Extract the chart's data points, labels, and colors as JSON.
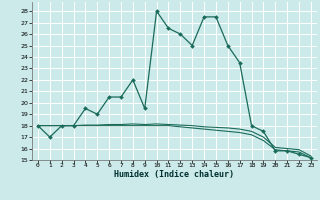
{
  "xlabel": "Humidex (Indice chaleur)",
  "bg_color": "#cceaea",
  "grid_color": "#ffffff",
  "line_color": "#1a6b5a",
  "xlim": [
    -0.5,
    23.5
  ],
  "ylim": [
    15,
    28.8
  ],
  "xticks": [
    0,
    1,
    2,
    3,
    4,
    5,
    6,
    7,
    8,
    9,
    10,
    11,
    12,
    13,
    14,
    15,
    16,
    17,
    18,
    19,
    20,
    21,
    22,
    23
  ],
  "yticks": [
    15,
    16,
    17,
    18,
    19,
    20,
    21,
    22,
    23,
    24,
    25,
    26,
    27,
    28
  ],
  "main_x": [
    0,
    1,
    2,
    3,
    4,
    5,
    6,
    7,
    8,
    9,
    10,
    11,
    12,
    13,
    14,
    15,
    16,
    17,
    18,
    19,
    20,
    21,
    22,
    23
  ],
  "main_y": [
    18,
    17,
    18,
    18,
    19.5,
    19,
    20.5,
    20.5,
    22,
    19.5,
    28,
    26.5,
    26,
    25,
    27.5,
    27.5,
    25,
    23.5,
    18,
    17.5,
    15.8,
    15.8,
    15.5,
    15.2
  ],
  "line2_x": [
    0,
    1,
    2,
    3,
    4,
    5,
    6,
    7,
    8,
    9,
    10,
    11,
    12,
    13,
    14,
    15,
    16,
    17,
    18,
    19,
    20,
    21,
    22,
    23
  ],
  "line2_y": [
    18,
    18,
    18,
    18,
    18,
    18,
    18,
    18,
    18,
    18,
    18,
    18,
    17.9,
    17.8,
    17.7,
    17.6,
    17.5,
    17.4,
    17.2,
    16.7,
    15.9,
    15.8,
    15.7,
    15.2
  ],
  "line3_x": [
    0,
    1,
    2,
    3,
    4,
    5,
    6,
    7,
    8,
    9,
    10,
    11,
    12,
    13,
    14,
    15,
    16,
    17,
    18,
    19,
    20,
    21,
    22,
    23
  ],
  "line3_y": [
    18,
    18,
    18,
    18,
    18.05,
    18.05,
    18.1,
    18.1,
    18.15,
    18.1,
    18.15,
    18.1,
    18.05,
    18.0,
    17.9,
    17.85,
    17.8,
    17.7,
    17.5,
    17.0,
    16.1,
    16.0,
    15.9,
    15.35
  ]
}
